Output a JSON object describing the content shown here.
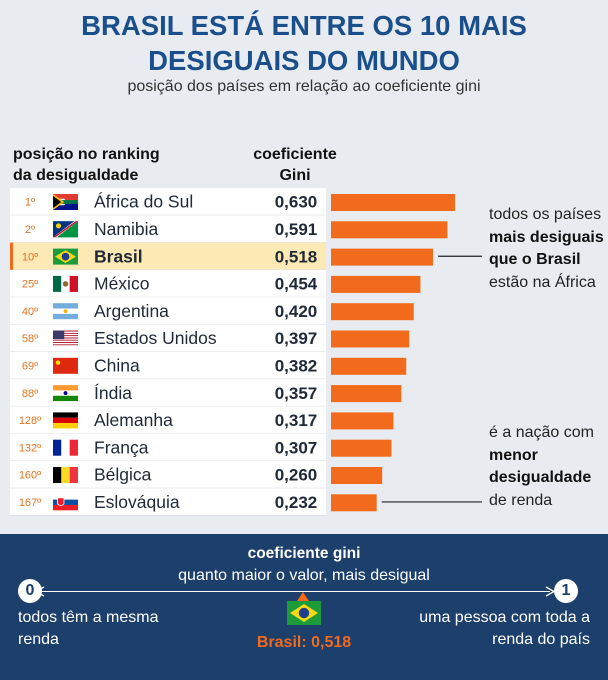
{
  "header": {
    "title_line1": "BRASIL ESTÁ ENTRE OS 10 MAIS",
    "title_line2": "DESIGUAIS DO MUNDO",
    "subtitle": "posição dos países em relação ao coeficiente gini"
  },
  "columns": {
    "rank_line1": "posição no ranking",
    "rank_line2": "da desigualdade",
    "gini_line1": "coeficiente",
    "gini_line2": "Gini"
  },
  "chart_data": {
    "type": "bar",
    "title": "BRASIL ESTÁ ENTRE OS 10 MAIS DESIGUAIS DO MUNDO",
    "subtitle": "posição dos países em relação ao coeficiente gini",
    "xlabel": "coeficiente Gini",
    "ylim": [
      0,
      1
    ],
    "highlight": "Brasil",
    "rows": [
      {
        "rank": "1º",
        "country": "África do Sul",
        "value": 0.63,
        "label": "0,630",
        "flag": "south-africa-flag"
      },
      {
        "rank": "2º",
        "country": "Namibia",
        "value": 0.591,
        "label": "0,591",
        "flag": "namibia-flag"
      },
      {
        "rank": "10º",
        "country": "Brasil",
        "value": 0.518,
        "label": "0,518",
        "flag": "brazil-flag"
      },
      {
        "rank": "25º",
        "country": "México",
        "value": 0.454,
        "label": "0,454",
        "flag": "mexico-flag"
      },
      {
        "rank": "40º",
        "country": "Argentina",
        "value": 0.42,
        "label": "0,420",
        "flag": "argentina-flag"
      },
      {
        "rank": "58º",
        "country": "Estados Unidos",
        "value": 0.397,
        "label": "0,397",
        "flag": "usa-flag"
      },
      {
        "rank": "69º",
        "country": "China",
        "value": 0.382,
        "label": "0,382",
        "flag": "china-flag"
      },
      {
        "rank": "88º",
        "country": "Índia",
        "value": 0.357,
        "label": "0,357",
        "flag": "india-flag"
      },
      {
        "rank": "128º",
        "country": "Alemanha",
        "value": 0.317,
        "label": "0,317",
        "flag": "germany-flag"
      },
      {
        "rank": "132º",
        "country": "França",
        "value": 0.307,
        "label": "0,307",
        "flag": "france-flag"
      },
      {
        "rank": "160º",
        "country": "Bélgica",
        "value": 0.26,
        "label": "0,260",
        "flag": "belgium-flag"
      },
      {
        "rank": "167º",
        "country": "Eslováquia",
        "value": 0.232,
        "label": "0,232",
        "flag": "slovakia-flag"
      }
    ]
  },
  "notes": {
    "top_pre": "todos os países ",
    "top_bold": "mais desiguais que o Brasil",
    "top_post": " estão na África",
    "bottom_pre": "é a nação com ",
    "bottom_bold": "menor desigualdade",
    "bottom_post": " de renda"
  },
  "footer": {
    "title": "coeficiente gini",
    "subtitle": "quanto maior o valor, mais desigual",
    "min_value": "0",
    "max_value": "1",
    "min_desc": "todos têm a mesma renda",
    "max_desc": "uma pessoa com toda a renda do país",
    "brasil_label": "Brasil: 0,518"
  },
  "colors": {
    "title": "#1a4f8b",
    "bar": "#f26a1b",
    "highlight_row": "#fde9b3",
    "footer_bg": "#1d3f6b"
  }
}
